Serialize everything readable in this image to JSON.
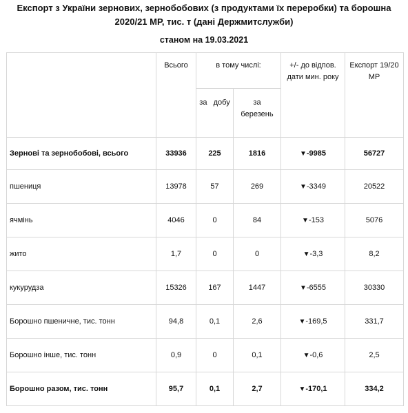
{
  "title": "Експорт з України зернових, зернобобових (з продуктами їх переробки) та борошна 2020/21 МР, тис. т (дані Держмитслужби)",
  "subtitle": "станом на 19.03.2021",
  "headers": {
    "total": "Всього",
    "including": "в тому числі:",
    "per_day": "за   добу",
    "per_month": "за березень",
    "diff": "+/- до відпов. дати мин. року",
    "prev_export": "Експорт 19/20 МР"
  },
  "rows": [
    {
      "label": "Зернові та зернобобові, всього",
      "total": "33936",
      "day": "225",
      "month": "1816",
      "arrow": "▼",
      "diff": "-9985",
      "prev": "56727"
    },
    {
      "label": "пшениця",
      "total": "13978",
      "day": "57",
      "month": "269",
      "arrow": "▼",
      "diff": "-3349",
      "prev": "20522"
    },
    {
      "label": "ячмінь",
      "total": "4046",
      "day": "0",
      "month": "84",
      "arrow": "▼",
      "diff": "-153",
      "prev": "5076"
    },
    {
      "label": "жито",
      "total": "1,7",
      "day": "0",
      "month": "0",
      "arrow": "▼",
      "diff": "-3,3",
      "prev": "8,2"
    },
    {
      "label": "кукурудза",
      "total": "15326",
      "day": "167",
      "month": "1447",
      "arrow": "▼",
      "diff": "-6555",
      "prev": "30330"
    },
    {
      "label": "Борошно пшеничне, тис. тонн",
      "total": "94,8",
      "day": "0,1",
      "month": "2,6",
      "arrow": "▼",
      "diff": "-169,5",
      "prev": "331,7"
    },
    {
      "label": "Борошно інше, тис. тонн",
      "total": "0,9",
      "day": "0",
      "month": "0,1",
      "arrow": "▼",
      "diff": "-0,6",
      "prev": "2,5"
    },
    {
      "label": "Борошно разом, тис. тонн",
      "total": "95,7",
      "day": "0,1",
      "month": "2,7",
      "arrow": "▼",
      "diff": "-170,1",
      "prev": "334,2"
    }
  ]
}
